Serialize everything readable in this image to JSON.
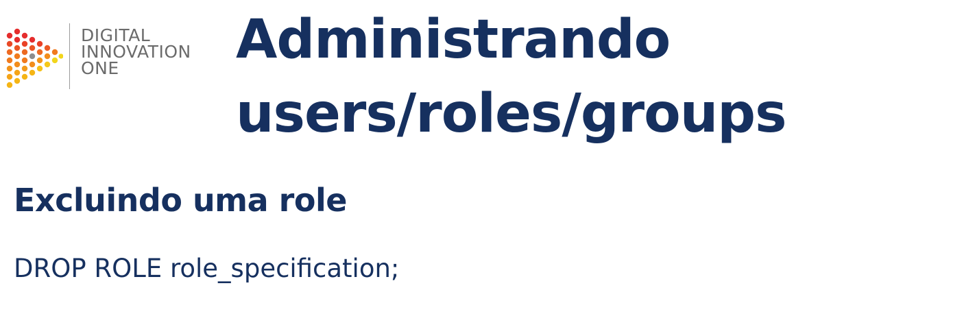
{
  "logo": {
    "line1": "DIGITAL",
    "line2": "INNOVATION",
    "line3": "ONE",
    "colors": [
      "#e52d2d",
      "#f07a1e",
      "#f5b516",
      "#f2d51c"
    ]
  },
  "title": {
    "line1": "Administrando",
    "line2": "users/roles/groups"
  },
  "section": {
    "heading": "Excluindo uma role",
    "command": "DROP ROLE role_specification;"
  },
  "colors": {
    "title": "#16305f",
    "logo_text": "#6b6b6b"
  }
}
